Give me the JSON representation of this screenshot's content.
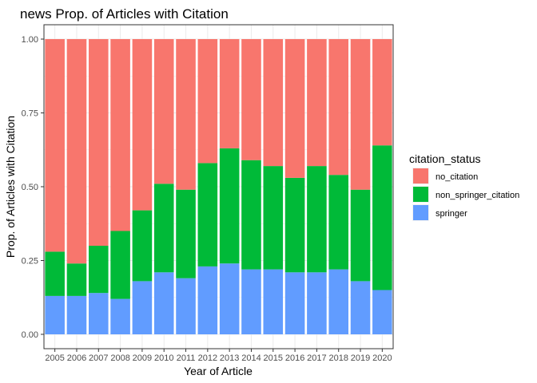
{
  "chart_data": {
    "type": "bar",
    "stacked": true,
    "title": "news Prop. of Articles with Citation",
    "xlabel": "Year of Article",
    "ylabel": "Prop. of Articles with Citation",
    "ylim": [
      0,
      1
    ],
    "yticks": [
      "0.00",
      "0.25",
      "0.50",
      "0.75",
      "1.00"
    ],
    "grid": true,
    "legend": {
      "title": "citation_status",
      "position": "right",
      "entries": [
        {
          "name": "no_citation",
          "color": "#F8766D"
        },
        {
          "name": "non_springer_citation",
          "color": "#00BA38"
        },
        {
          "name": "springer",
          "color": "#619CFF"
        }
      ]
    },
    "categories": [
      "2005",
      "2006",
      "2007",
      "2008",
      "2009",
      "2010",
      "2011",
      "2012",
      "2013",
      "2014",
      "2015",
      "2016",
      "2017",
      "2018",
      "2019",
      "2020"
    ],
    "series": [
      {
        "name": "springer",
        "color": "#619CFF",
        "values": [
          0.13,
          0.13,
          0.14,
          0.12,
          0.18,
          0.21,
          0.19,
          0.23,
          0.24,
          0.22,
          0.22,
          0.21,
          0.21,
          0.22,
          0.18,
          0.15
        ]
      },
      {
        "name": "non_springer_citation",
        "color": "#00BA38",
        "values": [
          0.15,
          0.11,
          0.16,
          0.23,
          0.24,
          0.3,
          0.3,
          0.35,
          0.39,
          0.37,
          0.35,
          0.32,
          0.36,
          0.32,
          0.31,
          0.49
        ]
      },
      {
        "name": "no_citation",
        "color": "#F8766D",
        "values": [
          0.72,
          0.76,
          0.7,
          0.65,
          0.58,
          0.49,
          0.51,
          0.42,
          0.37,
          0.41,
          0.43,
          0.47,
          0.43,
          0.46,
          0.51,
          0.36
        ]
      }
    ]
  }
}
